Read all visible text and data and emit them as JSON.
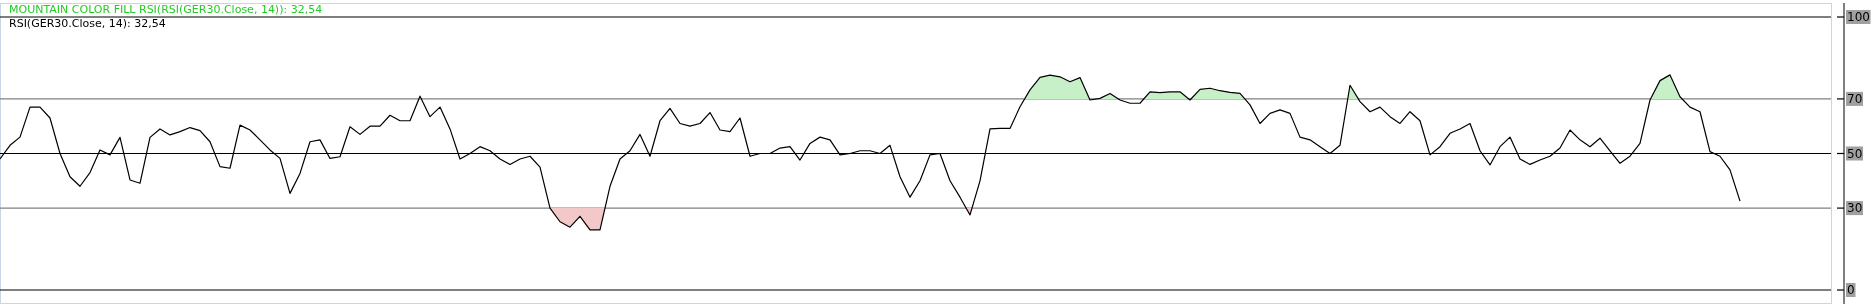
{
  "chart_data": {
    "type": "line",
    "title": "MOUNTAIN COLOR FILL RSI(RSI(GER30.Close, 14)): 32,54",
    "subtitle": "RSI(GER30.Close, 14): 32,54",
    "categories": [
      null,
      null,
      null,
      null,
      null,
      null,
      null,
      null,
      null,
      null,
      null,
      null,
      null,
      null,
      null,
      null,
      null,
      null,
      null,
      null,
      null,
      null,
      null,
      null,
      null,
      null,
      null,
      null,
      null,
      null,
      null,
      null,
      null,
      null,
      null,
      null,
      null,
      null,
      null,
      null,
      null,
      null,
      null,
      null,
      null,
      null,
      null,
      null,
      null,
      null,
      null,
      null,
      null,
      null,
      null,
      null,
      null,
      null,
      null,
      null,
      null,
      null,
      null,
      null,
      null,
      null,
      null,
      null,
      null,
      null,
      null,
      null,
      null,
      null,
      null,
      null,
      null,
      null,
      null,
      null,
      null,
      null,
      null,
      null,
      null,
      null,
      null,
      null,
      null,
      null,
      null,
      null,
      null,
      null,
      null,
      null,
      null,
      null,
      null,
      null,
      null,
      null,
      null,
      null,
      null,
      null,
      null,
      null,
      null,
      null,
      null,
      null,
      null,
      null,
      null,
      null,
      null,
      null,
      null,
      null,
      null,
      null,
      null,
      null,
      null,
      null,
      null,
      null,
      null,
      null,
      null,
      null,
      null,
      null,
      null,
      null,
      null,
      null,
      null,
      null,
      null,
      null,
      null,
      null,
      null,
      null,
      null,
      null,
      null,
      null,
      null,
      null,
      null,
      null,
      null,
      null,
      null,
      null,
      null,
      null,
      null,
      null,
      null,
      null,
      null,
      null,
      null,
      null,
      null,
      null,
      null,
      null,
      null,
      null,
      null
    ],
    "series": [
      {
        "color": "#000000",
        "values": [
          48,
          53,
          56,
          67,
          67,
          63,
          50,
          41.5,
          38,
          43,
          51.3,
          49.5,
          55.9,
          40.3,
          39.1,
          55.9,
          59,
          56.8,
          58,
          59.5,
          58.4,
          54.3,
          45.2,
          44.6,
          60.4,
          58.6,
          55,
          51.3,
          48.2,
          35.4,
          42.7,
          54.3,
          55,
          48.2,
          48.8,
          59.8,
          57,
          60,
          60,
          64,
          62,
          62,
          71,
          63.5,
          67,
          59,
          48,
          50,
          52.5,
          51,
          48,
          46,
          48,
          49,
          45,
          30,
          25,
          23,
          27,
          22,
          22,
          38,
          48,
          51,
          57,
          49,
          62,
          66.5,
          61,
          60,
          61,
          65,
          58.6,
          58,
          63,
          49,
          50,
          50,
          52,
          52.5,
          47.6,
          53.7,
          56,
          55,
          49.5,
          50,
          51,
          51,
          50,
          53,
          41.5,
          34,
          40,
          49.5,
          50,
          40,
          34,
          27.5,
          40,
          59,
          59.2,
          59.2,
          67.1,
          73.3,
          77.9,
          78.7,
          78.1,
          76.3,
          77.8,
          69.6,
          70.2,
          72,
          69.6,
          68.4,
          68.4,
          72.6,
          72.3,
          72.6,
          72.6,
          69.6,
          73.5,
          73.9,
          73,
          72.4,
          72,
          67.8,
          61,
          64.7,
          66,
          64.7,
          56,
          55,
          52.5,
          50,
          53,
          75,
          69,
          65.3,
          67,
          63.5,
          61,
          65.3,
          62,
          49.5,
          52.5,
          57.4,
          59,
          61,
          51,
          45.8,
          52.5,
          56,
          48,
          46,
          47.6,
          49,
          52,
          58.6,
          55,
          52.5,
          55.6,
          51,
          46.4,
          49,
          53.7,
          69.6,
          76.7,
          78.8,
          70.8,
          67,
          65.3,
          50.7,
          49,
          44,
          32.54
        ]
      }
    ],
    "ylim": [
      0,
      100
    ],
    "yticks": [
      0,
      30,
      50,
      70,
      100
    ],
    "tick_labels": "y",
    "ref_lines": [
      {
        "axis": "y",
        "value": 100,
        "color": "#000000"
      },
      {
        "axis": "y",
        "value": 70,
        "color": "#808080"
      },
      {
        "axis": "y",
        "value": 50,
        "color": "#000000"
      },
      {
        "axis": "y",
        "value": 30,
        "color": "#808080"
      },
      {
        "axis": "y",
        "value": 0,
        "color": "#000000"
      }
    ]
  }
}
